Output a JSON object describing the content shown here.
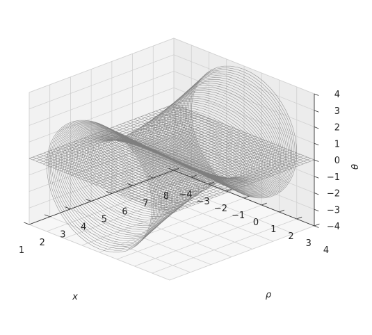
{
  "chart_data": {
    "type": "surface3d-wireframe",
    "title": "",
    "axes": {
      "x": {
        "label": "x",
        "range": [
          1,
          8
        ],
        "ticks": [
          "1",
          "2",
          "3",
          "4",
          "5",
          "6",
          "7",
          "8"
        ]
      },
      "y": {
        "label": "ρ",
        "range": [
          -4,
          4
        ],
        "ticks": [
          "−4",
          "−3",
          "−2",
          "−1",
          "0",
          "1",
          "2",
          "3",
          "4"
        ]
      },
      "z": {
        "label": "θ",
        "range": [
          -4,
          4
        ],
        "ticks": [
          "−4",
          "−3",
          "−2",
          "−1",
          "0",
          "1",
          "2",
          "3",
          "4"
        ]
      }
    },
    "grid": true,
    "panes": "light-gray",
    "colors": {
      "wire": "#808080",
      "pane": "#f2f2f2",
      "grid": "#d0d0d0",
      "edge": "#333333"
    },
    "surfaces": [
      {
        "name": "",
        "shape": "plane",
        "z": 0,
        "x_range": [
          1,
          8
        ],
        "y_range": [
          -4,
          4
        ]
      },
      {
        "name": "",
        "shape": "helicoid-ribbon",
        "x_range": [
          1,
          8
        ],
        "z_range": [
          -4,
          4
        ],
        "y_amplitude": 3
      }
    ]
  }
}
